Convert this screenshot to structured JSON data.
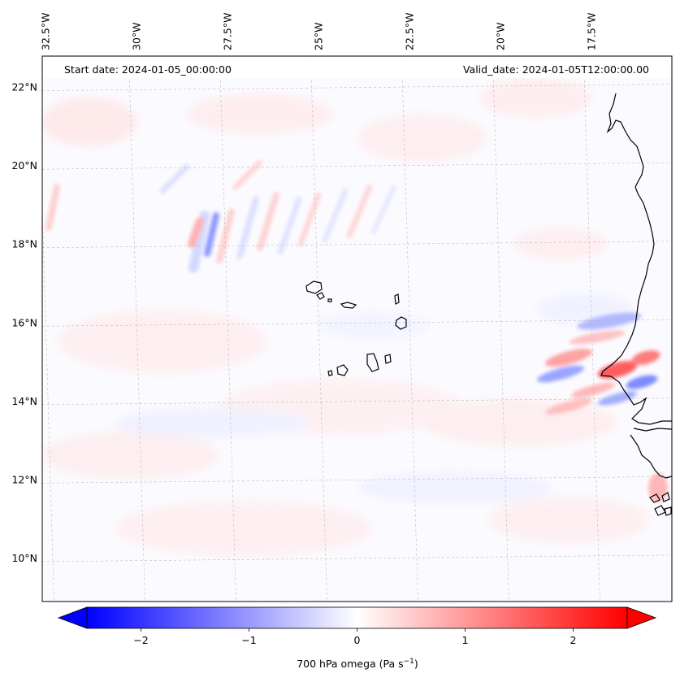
{
  "map": {
    "start_date": "Start date: 2024-01-05_00:00:00",
    "valid_date": "Valid_date: 2024-01-05T12:00:00.00",
    "lon_labels": [
      {
        "lon": -32.5,
        "text": "32.5°W"
      },
      {
        "lon": -30,
        "text": "30°W"
      },
      {
        "lon": -27.5,
        "text": "27.5°W"
      },
      {
        "lon": -25,
        "text": "25°W"
      },
      {
        "lon": -22.5,
        "text": "22.5°W"
      },
      {
        "lon": -20,
        "text": "20°W"
      },
      {
        "lon": -17.5,
        "text": "17.5°W"
      }
    ],
    "lat_labels": [
      {
        "lat": 22,
        "text": "22°N"
      },
      {
        "lat": 20,
        "text": "20°N"
      },
      {
        "lat": 18,
        "text": "18°N"
      },
      {
        "lat": 16,
        "text": "16°N"
      },
      {
        "lat": 14,
        "text": "14°N"
      },
      {
        "lat": 12,
        "text": "12°N"
      },
      {
        "lat": 10,
        "text": "10°N"
      }
    ],
    "extent": {
      "lon_min": -32.6,
      "lon_max": -15.3,
      "lat_min": 8.9,
      "lat_max": 22.8
    },
    "colors": {
      "negative": "#0000ff",
      "neutral": "#ffffff",
      "positive": "#ff0000",
      "coast": "#000000",
      "grid": "#b0b0b0"
    }
  },
  "colorbar": {
    "min": -2.75,
    "max": 2.75,
    "ticks": [
      {
        "value": -2,
        "label": "−2"
      },
      {
        "value": -1,
        "label": "−1"
      },
      {
        "value": 0,
        "label": "0"
      },
      {
        "value": 1,
        "label": "1"
      },
      {
        "value": 2,
        "label": "2"
      }
    ],
    "label": "700 hPa omega (Pa s",
    "label_sup": "−1",
    "label_end": ")"
  }
}
